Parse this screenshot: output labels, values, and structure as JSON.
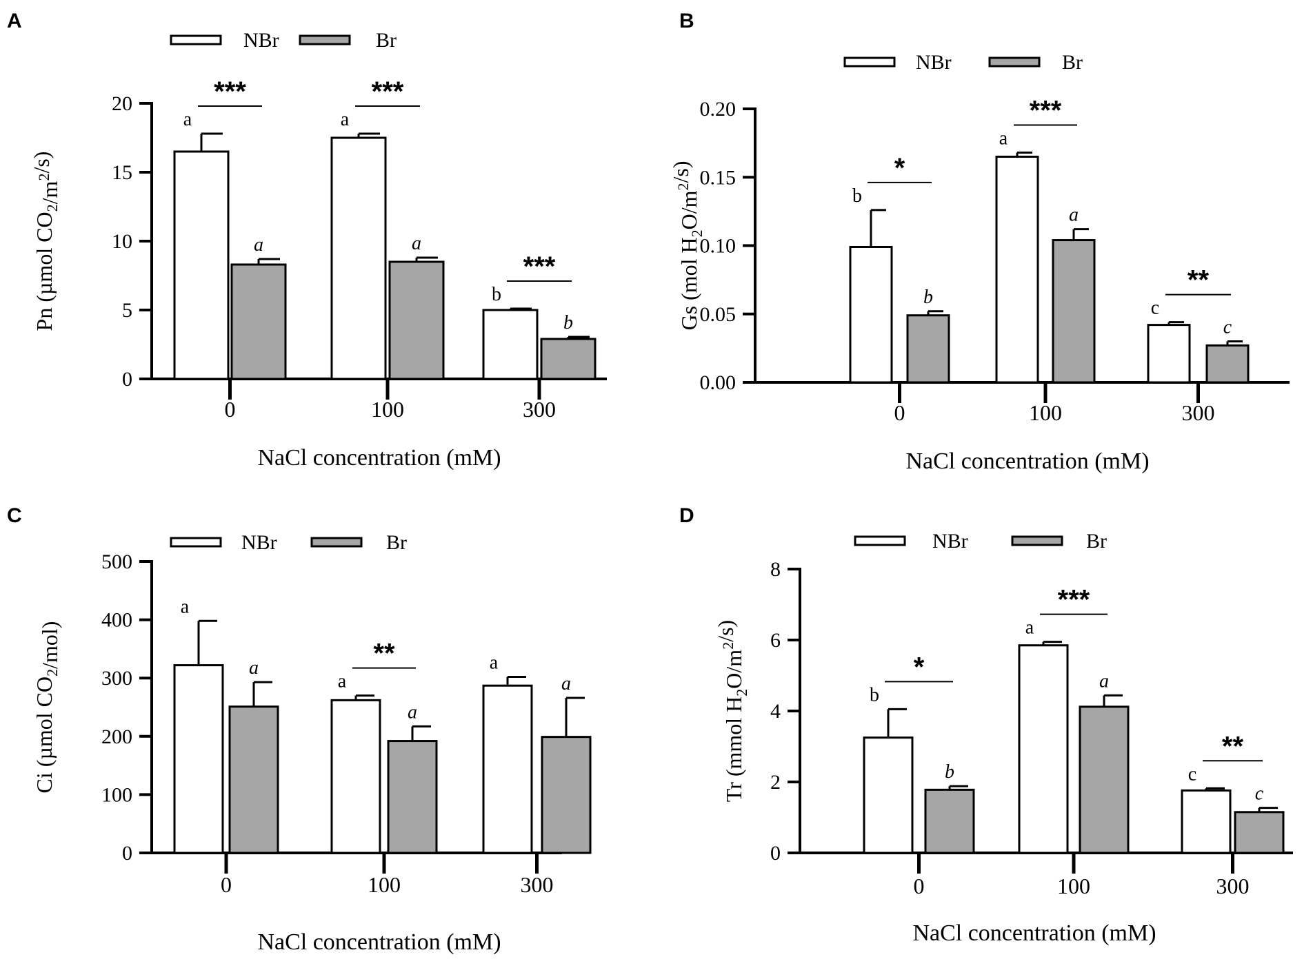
{
  "figure": {
    "legend": {
      "nbr": "NBr",
      "br": "Br"
    },
    "colors": {
      "nbr_fill": "#ffffff",
      "br_fill": "#a6a6a6",
      "stroke": "#000000"
    }
  },
  "chart_data": [
    {
      "panel": "A",
      "type": "bar",
      "ylabel": "Pn (µmol CO2/m2/s)",
      "xlabel": "NaCl concentration (mM)",
      "categories": [
        "0",
        "100",
        "300"
      ],
      "ylim": [
        0,
        20
      ],
      "yticks": [
        0,
        5,
        10,
        15,
        20
      ],
      "ytick_labels": [
        "0",
        "5",
        "10",
        "15",
        "20"
      ],
      "series": [
        {
          "name": "NBr",
          "values": [
            16.5,
            17.5,
            5.0
          ],
          "errors": [
            1.3,
            0.3,
            0.1
          ],
          "letters": [
            "a",
            "a",
            "b"
          ]
        },
        {
          "name": "Br",
          "values": [
            8.3,
            8.5,
            2.9
          ],
          "errors": [
            0.4,
            0.3,
            0.15
          ],
          "letters": [
            "a",
            "a",
            "b"
          ]
        }
      ],
      "significance": [
        "***",
        "***",
        "***"
      ]
    },
    {
      "panel": "B",
      "type": "bar",
      "ylabel": "Gs (mol H2O/m2/s)",
      "xlabel": "NaCl concentration (mM)",
      "categories": [
        "0",
        "100",
        "300"
      ],
      "ylim": [
        0,
        0.2
      ],
      "yticks": [
        0,
        0.05,
        0.1,
        0.15,
        0.2
      ],
      "ytick_labels": [
        "0.00",
        "0.05",
        "0.10",
        "0.15",
        "0.20"
      ],
      "series": [
        {
          "name": "NBr",
          "values": [
            0.099,
            0.165,
            0.042
          ],
          "errors": [
            0.027,
            0.003,
            0.002
          ],
          "letters": [
            "b",
            "a",
            "c"
          ]
        },
        {
          "name": "Br",
          "values": [
            0.049,
            0.104,
            0.027
          ],
          "errors": [
            0.003,
            0.008,
            0.003
          ],
          "letters": [
            "b",
            "a",
            "c"
          ]
        }
      ],
      "significance": [
        "*",
        "***",
        "**"
      ]
    },
    {
      "panel": "C",
      "type": "bar",
      "ylabel": "Ci (µmol CO2/mol)",
      "xlabel": "NaCl concentration (mM)",
      "categories": [
        "0",
        "100",
        "300"
      ],
      "ylim": [
        0,
        500
      ],
      "yticks": [
        0,
        100,
        200,
        300,
        400,
        500
      ],
      "ytick_labels": [
        "0",
        "100",
        "200",
        "300",
        "400",
        "500"
      ],
      "series": [
        {
          "name": "NBr",
          "values": [
            322,
            262,
            287
          ],
          "errors": [
            76,
            8,
            15
          ],
          "letters": [
            "a",
            "a",
            "a"
          ]
        },
        {
          "name": "Br",
          "values": [
            251,
            192,
            199
          ],
          "errors": [
            42,
            25,
            67
          ],
          "letters": [
            "a",
            "a",
            "a"
          ]
        }
      ],
      "significance": [
        "",
        "**",
        ""
      ]
    },
    {
      "panel": "D",
      "type": "bar",
      "ylabel": "Tr (mmol H2O/m2/s)",
      "xlabel": "NaCl concentration (mM)",
      "categories": [
        "0",
        "100",
        "300"
      ],
      "ylim": [
        0,
        8
      ],
      "yticks": [
        0,
        2,
        4,
        6,
        8
      ],
      "ytick_labels": [
        "0",
        "2",
        "4",
        "6",
        "8"
      ],
      "series": [
        {
          "name": "NBr",
          "values": [
            3.25,
            5.85,
            1.76
          ],
          "errors": [
            0.8,
            0.1,
            0.06
          ],
          "letters": [
            "b",
            "a",
            "c"
          ]
        },
        {
          "name": "Br",
          "values": [
            1.78,
            4.12,
            1.15
          ],
          "errors": [
            0.1,
            0.32,
            0.12
          ],
          "letters": [
            "b",
            "a",
            "c"
          ]
        }
      ],
      "significance": [
        "*",
        "***",
        "**"
      ]
    }
  ]
}
